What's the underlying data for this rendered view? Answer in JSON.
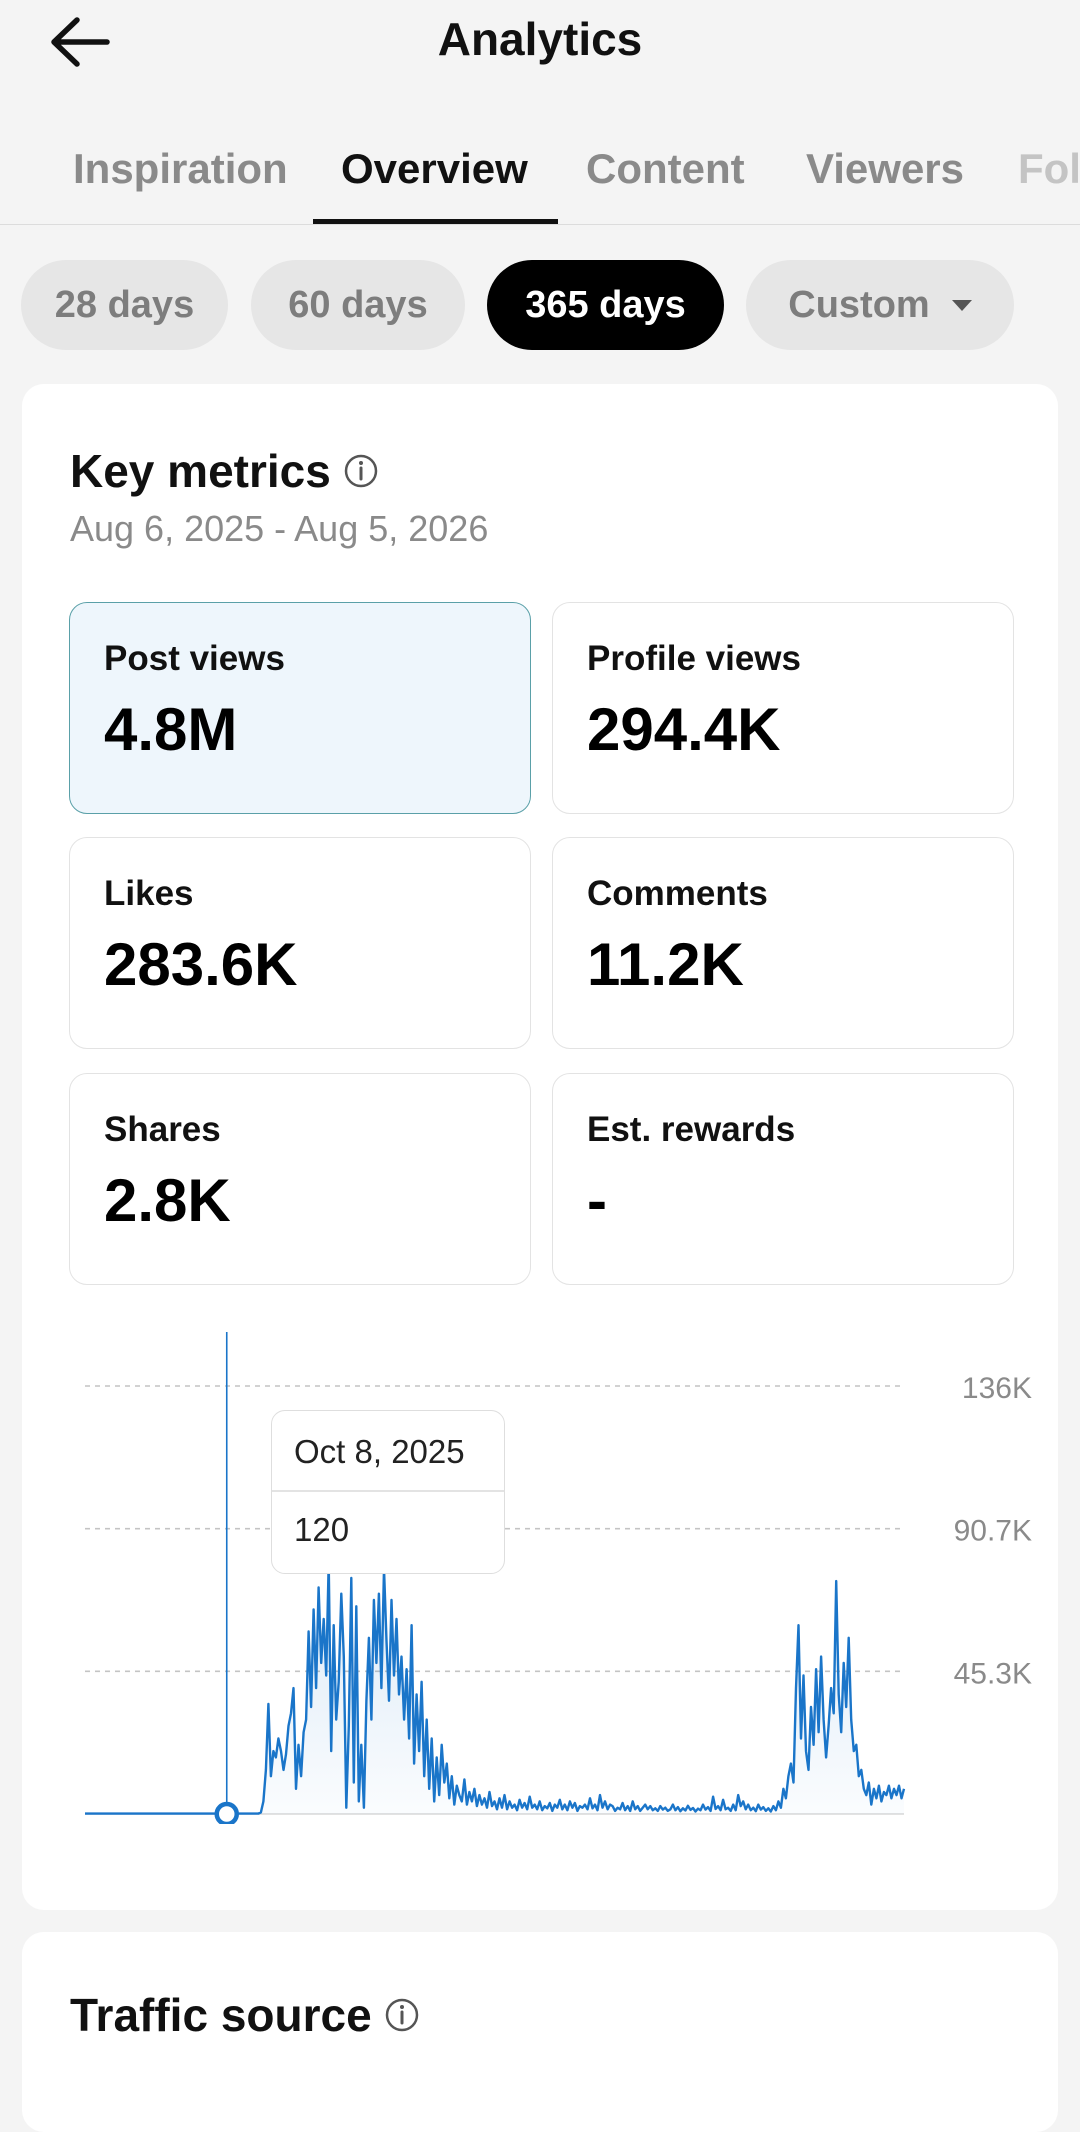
{
  "header": {
    "title": "Analytics",
    "back_icon": "arrow-left-icon"
  },
  "tabs": [
    {
      "label": "Inspiration",
      "active": false
    },
    {
      "label": "Overview",
      "active": true
    },
    {
      "label": "Content",
      "active": false
    },
    {
      "label": "Viewers",
      "active": false
    },
    {
      "label": "Fol",
      "active": false
    }
  ],
  "ranges": [
    {
      "label": "28 days",
      "active": false
    },
    {
      "label": "60 days",
      "active": false
    },
    {
      "label": "365 days",
      "active": true
    },
    {
      "label": "Custom",
      "active": false,
      "dropdown": true
    }
  ],
  "key_metrics": {
    "title": "Key metrics",
    "date_range": "Aug 6, 2025 - Aug 5, 2026",
    "metrics": [
      {
        "label": "Post views",
        "value": "4.8M",
        "selected": true
      },
      {
        "label": "Profile views",
        "value": "294.4K",
        "selected": false
      },
      {
        "label": "Likes",
        "value": "283.6K",
        "selected": false
      },
      {
        "label": "Comments",
        "value": "11.2K",
        "selected": false
      },
      {
        "label": "Shares",
        "value": "2.8K",
        "selected": false
      },
      {
        "label": "Est. rewards",
        "value": "-",
        "selected": false
      }
    ]
  },
  "chart_data": {
    "type": "line",
    "title": "",
    "xlabel": "",
    "ylabel": "",
    "x_tick_labels": [
      "Aug 6, 2025",
      "Aug 5, 2026"
    ],
    "y_tick_labels": [
      "136K",
      "90.7K",
      "45.3K"
    ],
    "ylim": [
      0,
      136000
    ],
    "grid": true,
    "color": "#1a75c9",
    "series": [
      {
        "x_start": "Aug 6, 2025",
        "x_end": "Aug 5, 2026",
        "values": [
          120,
          120,
          120,
          120,
          120,
          120,
          120,
          120,
          120,
          120,
          120,
          120,
          120,
          120,
          120,
          120,
          120,
          120,
          120,
          120,
          120,
          120,
          120,
          120,
          120,
          120,
          120,
          120,
          120,
          120,
          120,
          120,
          120,
          120,
          120,
          120,
          120,
          120,
          120,
          120,
          120,
          120,
          120,
          120,
          120,
          120,
          120,
          120,
          120,
          120,
          120,
          120,
          120,
          120,
          120,
          120,
          120,
          120,
          120,
          120,
          120,
          120,
          120,
          120,
          120,
          120,
          120,
          120,
          120,
          120,
          500,
          4000,
          14000,
          35000,
          12000,
          20000,
          18000,
          24000,
          20000,
          14000,
          19000,
          28000,
          32000,
          40000,
          8000,
          22000,
          12000,
          26000,
          30000,
          58000,
          34000,
          65000,
          40000,
          72000,
          48000,
          62000,
          44000,
          80000,
          20000,
          60000,
          30000,
          42000,
          70000,
          50000,
          2000,
          28000,
          75000,
          10000,
          66000,
          4000,
          22000,
          2000,
          36000,
          56000,
          30000,
          68000,
          48000,
          70000,
          40000,
          78000,
          55000,
          36000,
          68000,
          44000,
          62000,
          38000,
          50000,
          30000,
          46000,
          24000,
          60000,
          16000,
          38000,
          20000,
          42000,
          12000,
          30000,
          8000,
          24000,
          4000,
          18000,
          6000,
          22000,
          10000,
          16000,
          5000,
          12000,
          3000,
          9000,
          6000,
          4000,
          11000,
          3000,
          7000,
          4000,
          8000,
          2500,
          6000,
          3000,
          5000,
          2000,
          7000,
          2500,
          4000,
          1500,
          5000,
          2000,
          6000,
          1500,
          4000,
          2000,
          3000,
          1200,
          4500,
          2000,
          3500,
          1500,
          5500,
          2000,
          3000,
          1500,
          4000,
          1200,
          2500,
          1800,
          3500,
          1000,
          3000,
          2000,
          4500,
          1500,
          3000,
          1200,
          4000,
          2000,
          3500,
          1000,
          2500,
          2000,
          3000,
          1500,
          5000,
          1800,
          3000,
          1200,
          6000,
          2000,
          4000,
          1500,
          3000,
          2500,
          1000,
          2000,
          1500,
          3500,
          1200,
          2500,
          1000,
          4000,
          1500,
          2500,
          1000,
          2000,
          3000,
          1500,
          2500,
          1200,
          1800,
          1000,
          2500,
          1400,
          2000,
          1000,
          1500,
          3000,
          1200,
          2200,
          900,
          1800,
          1100,
          2600,
          1300,
          1900,
          800,
          1700,
          1200,
          3000,
          1400,
          2200,
          1000,
          5500,
          1600,
          2500,
          1200,
          4500,
          1500,
          2000,
          1000,
          3000,
          1200,
          6000,
          2500,
          4000,
          1500,
          3000,
          1200,
          2000,
          900,
          3000,
          1400,
          2200,
          1000,
          1800,
          800,
          2500,
          1200,
          4000,
          2000,
          8000,
          5000,
          12000,
          16000,
          10000,
          40000,
          60000,
          24000,
          44000,
          20000,
          14000,
          34000,
          22000,
          46000,
          26000,
          50000,
          30000,
          18000,
          28000,
          40000,
          32000,
          74000,
          38000,
          26000,
          48000,
          34000,
          56000,
          30000,
          20000,
          22000,
          12000,
          14000,
          8000,
          6000,
          10000,
          3000,
          8000,
          5000,
          9000,
          4000,
          7000,
          6000,
          9000,
          5000,
          8000,
          6000,
          9000,
          5000,
          8000
        ]
      }
    ],
    "highlight": {
      "date": "Oct 8, 2025",
      "value": "120"
    }
  },
  "traffic_source": {
    "title": "Traffic source"
  }
}
